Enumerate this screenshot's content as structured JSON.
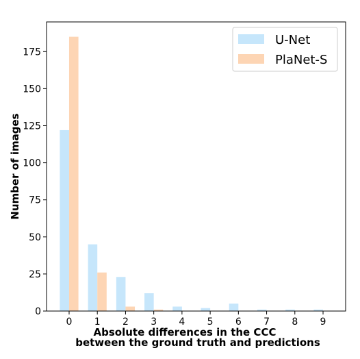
{
  "chart_data": {
    "type": "bar",
    "xlabel_lines": [
      "Absolute differences in the CCC",
      "between the ground truth and predictions"
    ],
    "ylabel": "Number of images",
    "categories": [
      "0",
      "1",
      "2",
      "3",
      "4",
      "5",
      "6",
      "7",
      "8",
      "9"
    ],
    "x": [
      0,
      1,
      2,
      3,
      4,
      5,
      6,
      7,
      8,
      9
    ],
    "ylim": [
      0,
      195
    ],
    "yticks": [
      0,
      25,
      50,
      75,
      100,
      125,
      150,
      175
    ],
    "grid": false,
    "legend_position": "top-right",
    "series": [
      {
        "name": "U-Net",
        "color": "#c6e6fb",
        "values": [
          122,
          45,
          23,
          12,
          3,
          2,
          5,
          1,
          1,
          1
        ]
      },
      {
        "name": "PlaNet-S",
        "color": "#fdd5b4",
        "values": [
          185,
          26,
          3,
          1,
          0,
          0,
          0,
          0,
          0,
          0
        ]
      }
    ]
  }
}
